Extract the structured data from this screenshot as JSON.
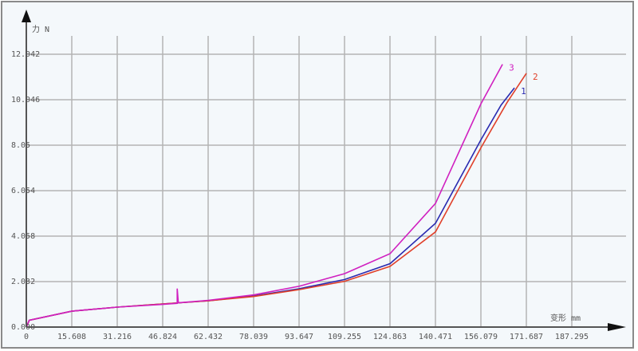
{
  "chart_data": {
    "type": "line",
    "xlabel": "变形 mm",
    "ylabel": "力 N",
    "x_ticks": [
      "0",
      "15.608",
      "31.216",
      "46.824",
      "62.432",
      "78.039",
      "93.647",
      "109.255",
      "124.863",
      "140.471",
      "156.079",
      "171.687",
      "187.295"
    ],
    "y_ticks": [
      "0.000",
      "2.032",
      "4.058",
      "6.054",
      "8.05",
      "10.046",
      "12.042"
    ],
    "xlim": [
      0,
      195
    ],
    "ylim": [
      0,
      13.5
    ],
    "grid": true,
    "series": [
      {
        "name": "1",
        "color": "#2a2ab0",
        "x": [
          0,
          1,
          15.6,
          31.2,
          46.8,
          62.4,
          78.0,
          93.6,
          109.3,
          124.9,
          140.5,
          156.1,
          163,
          167.6
        ],
        "y": [
          0,
          0.3,
          0.7,
          0.88,
          1.02,
          1.16,
          1.37,
          1.69,
          2.1,
          2.8,
          4.58,
          8.27,
          9.8,
          10.56
        ]
      },
      {
        "name": "2",
        "color": "#e0402a",
        "x": [
          0,
          1,
          15.6,
          31.2,
          46.8,
          62.4,
          78.0,
          93.6,
          109.3,
          124.9,
          140.5,
          156.1,
          165,
          171.7
        ],
        "y": [
          0,
          0.3,
          0.7,
          0.88,
          1.02,
          1.16,
          1.35,
          1.65,
          2.02,
          2.68,
          4.2,
          7.92,
          9.9,
          11.2
        ]
      },
      {
        "name": "3",
        "color": "#d020c0",
        "x": [
          0,
          1,
          15.6,
          31.2,
          46.8,
          51.8,
          51.8,
          52.2,
          62.4,
          78.0,
          93.6,
          109.3,
          124.9,
          140.5,
          156.1,
          163.5
        ],
        "y": [
          0,
          0.3,
          0.7,
          0.88,
          1.0,
          1.05,
          1.7,
          1.07,
          1.18,
          1.42,
          1.8,
          2.36,
          3.24,
          5.46,
          9.86,
          11.6
        ]
      }
    ]
  }
}
